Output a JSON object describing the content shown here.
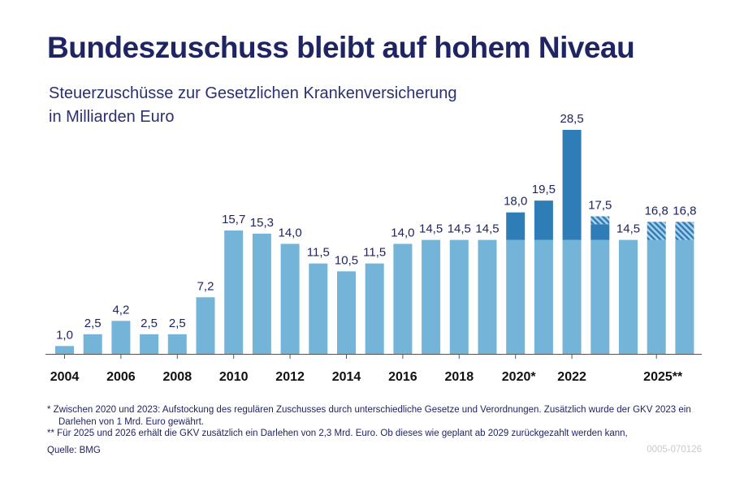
{
  "chart_data": {
    "type": "bar",
    "title": "Bundeszuschuss bleibt auf hohem Niveau",
    "subtitle": [
      "Steuerzuschüsse zur Gesetzlichen Krankenversicherung",
      "in Milliarden Euro"
    ],
    "years": [
      2004,
      2005,
      2006,
      2007,
      2008,
      2009,
      2010,
      2011,
      2012,
      2013,
      2014,
      2015,
      2016,
      2017,
      2018,
      2019,
      2020,
      2021,
      2022,
      2023,
      2024,
      2025,
      2026
    ],
    "tick_labels": {
      "2004": "2004",
      "2006": "2006",
      "2008": "2008",
      "2010": "2010",
      "2012": "2012",
      "2014": "2014",
      "2016": "2016",
      "2018": "2018",
      "2020": "2020*",
      "2022": "2022",
      "2025": "2025**"
    },
    "value_labels": [
      "1,0",
      "2,5",
      "4,2",
      "2,5",
      "2,5",
      "7,2",
      "15,7",
      "15,3",
      "14,0",
      "11,5",
      "10,5",
      "11,5",
      "14,0",
      "14,5",
      "14,5",
      "14,5",
      "18,0",
      "19,5",
      "28,5",
      "17,5",
      "14,5",
      "16,8",
      "16,8"
    ],
    "series": [
      {
        "values": [
          1.0,
          2.5,
          4.2,
          2.5,
          2.5,
          7.2,
          15.7,
          15.3,
          14.0,
          11.5,
          10.5,
          11.5,
          14.0,
          14.5,
          14.5,
          14.5,
          14.5,
          14.5,
          14.5,
          14.5,
          14.5,
          14.5,
          14.5
        ],
        "color": "#74b4d9"
      },
      {
        "values": [
          0,
          0,
          0,
          0,
          0,
          0,
          0,
          0,
          0,
          0,
          0,
          0,
          0,
          0,
          0,
          0,
          3.5,
          5.0,
          14.0,
          2.0,
          0,
          0,
          0
        ],
        "color": "#2f7db7"
      },
      {
        "values": [
          0,
          0,
          0,
          0,
          0,
          0,
          0,
          0,
          0,
          0,
          0,
          0,
          0,
          0,
          0,
          0,
          0,
          0,
          0,
          1.0,
          0,
          2.3,
          2.3
        ],
        "color": "#2f7db7",
        "pattern": "hatched"
      }
    ],
    "ylim": [
      0,
      28.5
    ],
    "grid": false
  },
  "footnotes": {
    "fn1": "*  Zwischen 2020 und 2023: Aufstockung des regulären Zuschusses durch unterschiedliche Gesetze und Verordnungen. Zusätzlich wurde der GKV 2023 ein Darlehen von 1 Mrd. Euro gewährt.",
    "fn2": "** Für 2025 und 2026 erhält die GKV zusätzlich ein Darlehen von 2,3 Mrd. Euro. Ob dieses wie geplant ab 2029 zurückgezahlt werden kann,",
    "source": "Quelle: BMG",
    "code": "0005-070126"
  },
  "colors": {
    "text": "#1f2463",
    "base": "#74b4d9",
    "extra": "#2f7db7"
  }
}
